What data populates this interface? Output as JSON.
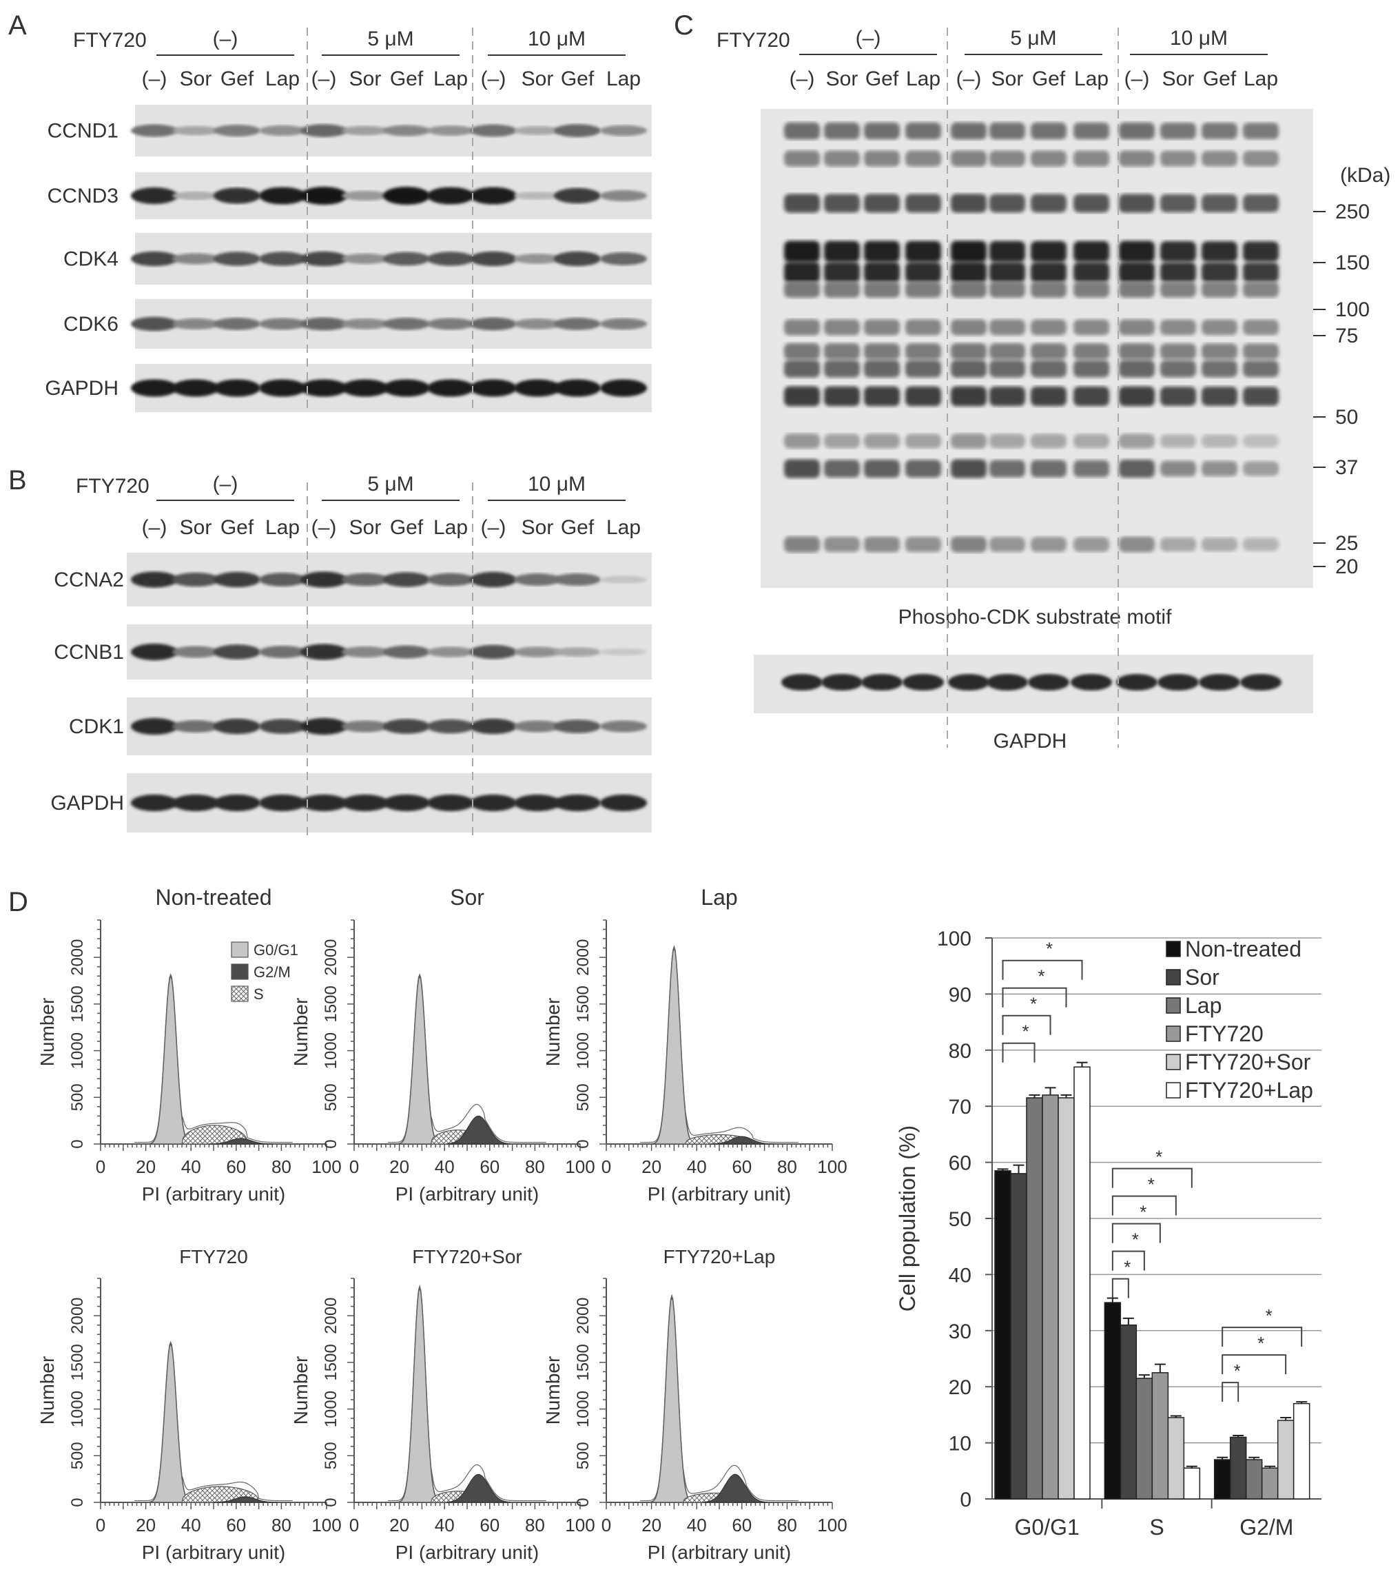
{
  "panels": {
    "A": {
      "letter": "A",
      "fty_label": "FTY720",
      "groups": [
        "(–)",
        "5 μM",
        "10 μM"
      ],
      "lanes": [
        "(–)",
        "Sor",
        "Gef",
        "Lap"
      ],
      "blots": [
        {
          "name": "CCND1",
          "intensity": [
            0.55,
            0.3,
            0.5,
            0.4,
            0.6,
            0.32,
            0.45,
            0.38,
            0.55,
            0.28,
            0.6,
            0.42
          ]
        },
        {
          "name": "CCND3",
          "intensity": [
            0.9,
            0.25,
            0.85,
            0.95,
            1.0,
            0.35,
            1.0,
            0.95,
            0.95,
            0.2,
            0.8,
            0.45
          ]
        },
        {
          "name": "CDK4",
          "intensity": [
            0.75,
            0.45,
            0.7,
            0.7,
            0.75,
            0.4,
            0.65,
            0.7,
            0.75,
            0.38,
            0.75,
            0.6
          ]
        },
        {
          "name": "CDK6",
          "intensity": [
            0.7,
            0.45,
            0.55,
            0.5,
            0.6,
            0.42,
            0.55,
            0.5,
            0.6,
            0.42,
            0.55,
            0.48
          ]
        },
        {
          "name": "GAPDH",
          "intensity": [
            0.95,
            0.95,
            0.95,
            0.95,
            0.95,
            0.95,
            0.95,
            0.95,
            0.95,
            0.95,
            0.95,
            0.95
          ]
        }
      ]
    },
    "B": {
      "letter": "B",
      "fty_label": "FTY720",
      "groups": [
        "(–)",
        "5 μM",
        "10 μM"
      ],
      "lanes": [
        "(–)",
        "Sor",
        "Gef",
        "Lap"
      ],
      "blots": [
        {
          "name": "CCNA2",
          "intensity": [
            0.85,
            0.7,
            0.8,
            0.65,
            0.85,
            0.6,
            0.75,
            0.6,
            0.8,
            0.55,
            0.55,
            0.15
          ]
        },
        {
          "name": "CCNB1",
          "intensity": [
            0.9,
            0.5,
            0.75,
            0.55,
            0.85,
            0.45,
            0.6,
            0.4,
            0.7,
            0.4,
            0.3,
            0.12
          ]
        },
        {
          "name": "CDK1",
          "intensity": [
            0.9,
            0.55,
            0.8,
            0.75,
            0.9,
            0.5,
            0.75,
            0.7,
            0.8,
            0.5,
            0.65,
            0.5
          ]
        },
        {
          "name": "GAPDH",
          "intensity": [
            0.9,
            0.9,
            0.9,
            0.9,
            0.9,
            0.9,
            0.9,
            0.9,
            0.9,
            0.9,
            0.9,
            0.9
          ]
        }
      ]
    },
    "C": {
      "letter": "C",
      "fty_label": "FTY720",
      "groups": [
        "(–)",
        "5 μM",
        "10 μM"
      ],
      "lanes": [
        "(–)",
        "Sor",
        "Gef",
        "Lap"
      ],
      "kda_label": "(kDa)",
      "markers": [
        "250",
        "150",
        "100",
        "75",
        "50",
        "37",
        "25",
        "20"
      ],
      "substrate_label": "Phospho-CDK substrate motif",
      "gapdh_label": "GAPDH"
    },
    "D": {
      "letter": "D",
      "histograms": [
        {
          "title": "Non-treated"
        },
        {
          "title": "Sor"
        },
        {
          "title": "Lap"
        },
        {
          "title": "FTY720"
        },
        {
          "title": "FTY720+Sor"
        },
        {
          "title": "FTY720+Lap"
        }
      ],
      "hist_ylabel": "Number",
      "hist_xlabel": "PI (arbitrary unit)",
      "hist_yticks": [
        "0",
        "500",
        "1000",
        "1500",
        "2000"
      ],
      "hist_xticks": [
        "0",
        "20",
        "40",
        "60",
        "80",
        "100"
      ],
      "legend": [
        "G0/G1",
        "G2/M",
        "S"
      ],
      "legend_colors": [
        "#c6c6c6",
        "#4a4a4a",
        "#ffffff"
      ]
    }
  },
  "chart_data": {
    "type": "bar",
    "categories": [
      "G0/G1",
      "S",
      "G2/M"
    ],
    "ylabel": "Cell population (%)",
    "ylim": [
      0,
      100
    ],
    "yticks": [
      0,
      10,
      20,
      30,
      40,
      50,
      60,
      70,
      80,
      90,
      100
    ],
    "grid": true,
    "legend_position": "top-right",
    "series": [
      {
        "name": "Non-treated",
        "color": "#111111",
        "values": [
          58.5,
          35.0,
          7.0
        ],
        "errors": [
          0.3,
          0.8,
          0.4
        ]
      },
      {
        "name": "Sor",
        "color": "#444444",
        "values": [
          58.0,
          31.0,
          11.0
        ],
        "errors": [
          1.5,
          1.2,
          0.3
        ]
      },
      {
        "name": "Lap",
        "color": "#777777",
        "values": [
          71.5,
          21.5,
          7.0
        ],
        "errors": [
          0.5,
          0.6,
          0.4
        ]
      },
      {
        "name": "FTY720",
        "color": "#999999",
        "values": [
          72.0,
          22.5,
          5.5
        ],
        "errors": [
          1.3,
          1.5,
          0.3
        ]
      },
      {
        "name": "FTY720+Sor",
        "color": "#cccccc",
        "values": [
          71.5,
          14.5,
          14.0
        ],
        "errors": [
          0.5,
          0.3,
          0.5
        ]
      },
      {
        "name": "FTY720+Lap",
        "color": "#ffffff",
        "values": [
          77.0,
          5.5,
          17.0
        ],
        "errors": [
          0.8,
          0.3,
          0.3
        ]
      }
    ],
    "significance": [
      {
        "category": 0,
        "from": 0,
        "to": 2,
        "label": "*"
      },
      {
        "category": 0,
        "from": 0,
        "to": 3,
        "label": "*"
      },
      {
        "category": 0,
        "from": 0,
        "to": 4,
        "label": "*"
      },
      {
        "category": 0,
        "from": 0,
        "to": 5,
        "label": "*"
      },
      {
        "category": 1,
        "from": 0,
        "to": 1,
        "label": "*"
      },
      {
        "category": 1,
        "from": 0,
        "to": 2,
        "label": "*"
      },
      {
        "category": 1,
        "from": 0,
        "to": 3,
        "label": "*"
      },
      {
        "category": 1,
        "from": 0,
        "to": 4,
        "label": "*"
      },
      {
        "category": 1,
        "from": 0,
        "to": 5,
        "label": "*"
      },
      {
        "category": 2,
        "from": 0,
        "to": 1,
        "label": "*"
      },
      {
        "category": 2,
        "from": 0,
        "to": 4,
        "label": "*"
      },
      {
        "category": 2,
        "from": 0,
        "to": 5,
        "label": "*"
      }
    ]
  }
}
